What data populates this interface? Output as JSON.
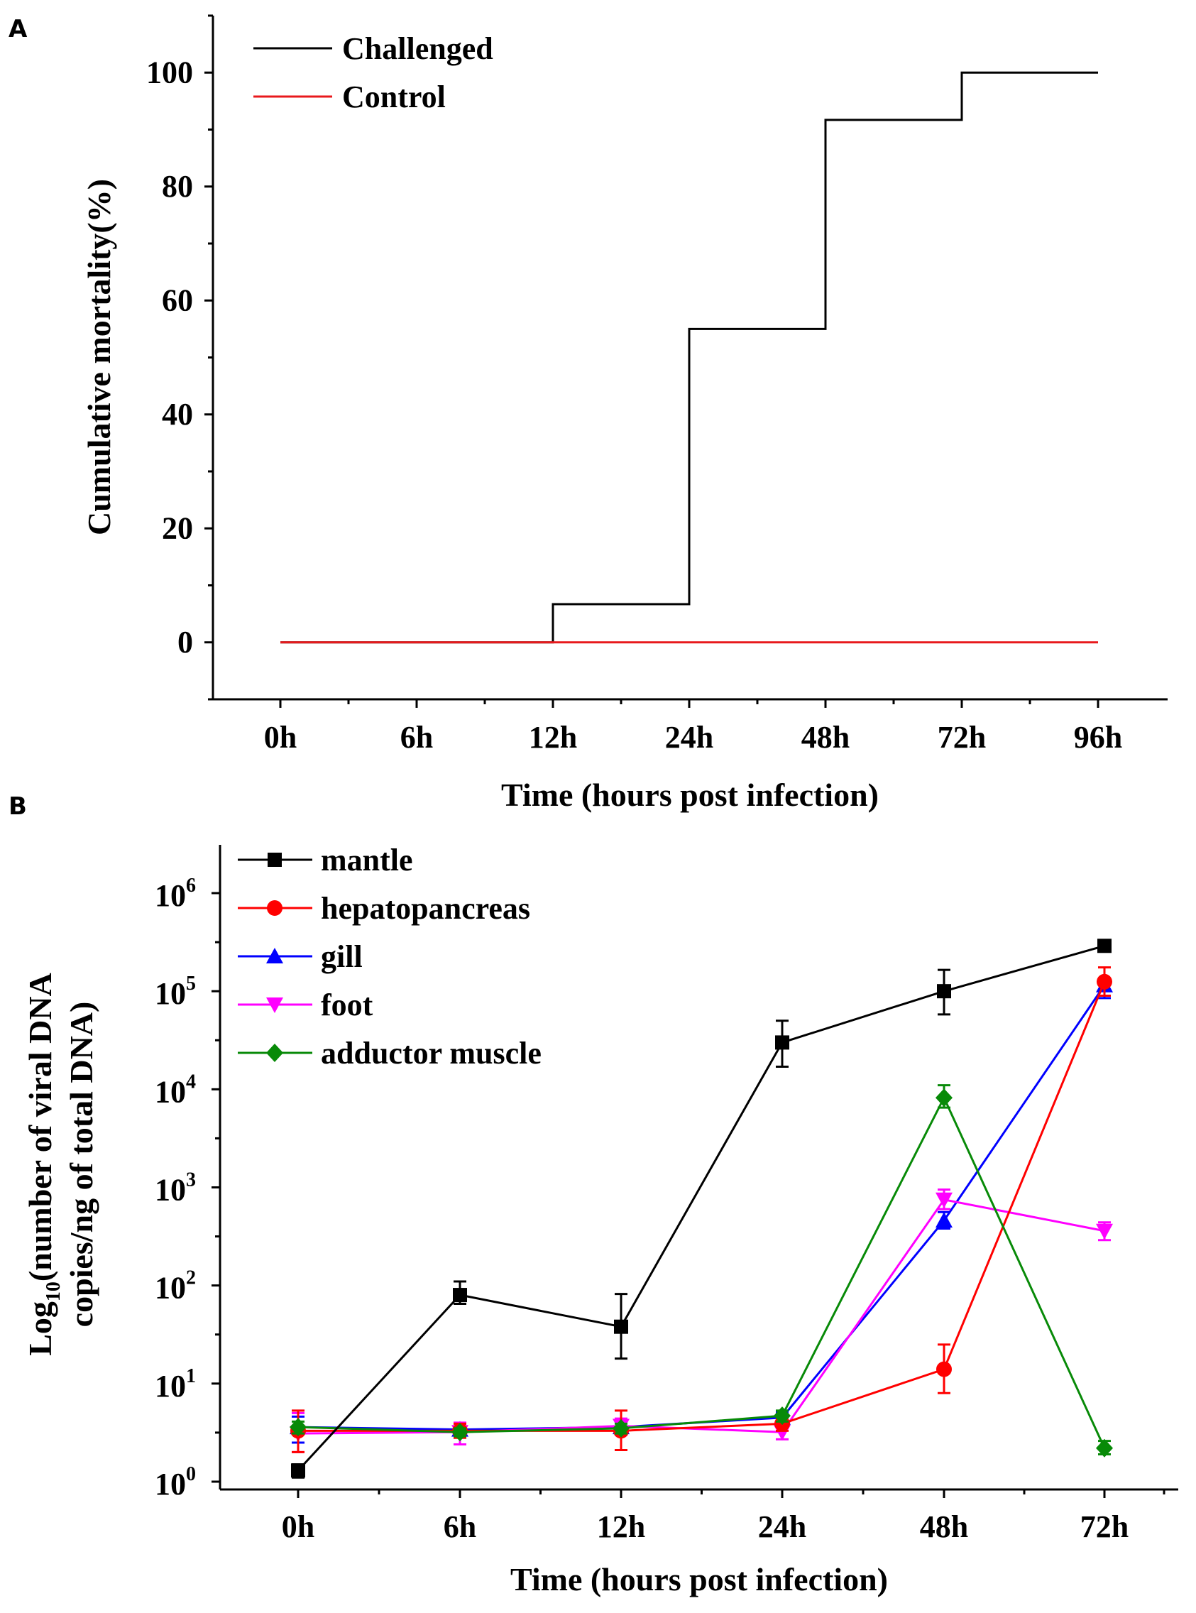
{
  "chart_data": [
    {
      "panel_label": "A",
      "type": "line",
      "step": true,
      "categories": [
        "0h",
        "6h",
        "12h",
        "24h",
        "48h",
        "72h",
        "96h"
      ],
      "xlabel": "Time (hours post infection)",
      "ylabel": "Cumulative mortality(%)",
      "ylim": [
        -10,
        110
      ],
      "yticks": [
        0,
        20,
        40,
        60,
        80,
        100
      ],
      "legend_position": "top-left",
      "series": [
        {
          "name": "Challenged",
          "color": "#000000",
          "values": [
            0,
            0,
            6.7,
            55,
            91.7,
            100,
            100
          ]
        },
        {
          "name": "Control",
          "color": "#e8191c",
          "values": [
            0,
            0,
            0,
            0,
            0,
            0,
            0
          ]
        }
      ]
    },
    {
      "panel_label": "B",
      "type": "line",
      "yscale": "log",
      "categories": [
        "0h",
        "6h",
        "12h",
        "24h",
        "48h",
        "72h"
      ],
      "xlabel": "Time (hours post infection)",
      "ylabel_line1": "Log",
      "ylabel_sub": "10",
      "ylabel_line1_rest": "(number of viral DNA",
      "ylabel_line2": "copies/ng of total DNA)",
      "ylim": [
        1,
        3000000
      ],
      "ytick_base": "10",
      "ytick_exponents": [
        "0",
        "1",
        "2",
        "3",
        "4",
        "5",
        "6"
      ],
      "legend_position": "top-left",
      "series": [
        {
          "name": "mantle",
          "color": "#000000",
          "marker": "square",
          "values": [
            1.3,
            80,
            38,
            30000,
            100000,
            290000
          ],
          "err_low": [
            1.1,
            65,
            18,
            17000,
            58000,
            270000
          ],
          "err_high": [
            1.5,
            110,
            82,
            50000,
            165000,
            310000
          ]
        },
        {
          "name": "hepatopancreas",
          "color": "#ff0000",
          "marker": "circle",
          "values": [
            3.3,
            3.3,
            3.3,
            3.9,
            14,
            125000
          ],
          "err_low": [
            2.0,
            2.8,
            2.1,
            3.3,
            8,
            90000
          ],
          "err_high": [
            5.3,
            3.9,
            5.3,
            4.5,
            25,
            175000
          ]
        },
        {
          "name": "gill",
          "color": "#0000ff",
          "marker": "triangle-up",
          "values": [
            3.6,
            3.4,
            3.6,
            4.5,
            460,
            115000
          ],
          "err_low": [
            2.5,
            2.9,
            3.0,
            3.9,
            380,
            85000
          ],
          "err_high": [
            4.6,
            3.9,
            4.3,
            5.1,
            560,
            135000
          ]
        },
        {
          "name": "foot",
          "color": "#ff00ff",
          "marker": "triangle-down",
          "values": [
            3.1,
            3.2,
            3.7,
            3.2,
            750,
            360
          ],
          "err_low": [
            2.0,
            2.4,
            3.0,
            2.7,
            600,
            290
          ],
          "err_high": [
            5.0,
            4.0,
            4.4,
            3.7,
            950,
            440
          ]
        },
        {
          "name": "adductor muscle",
          "color": "#088a08",
          "marker": "diamond",
          "values": [
            3.6,
            3.2,
            3.5,
            4.7,
            8200,
            2.2
          ],
          "err_low": [
            3.1,
            2.9,
            3.1,
            4.1,
            6500,
            1.9
          ],
          "err_high": [
            4.1,
            3.5,
            3.9,
            5.3,
            11000,
            2.6
          ]
        }
      ]
    }
  ]
}
